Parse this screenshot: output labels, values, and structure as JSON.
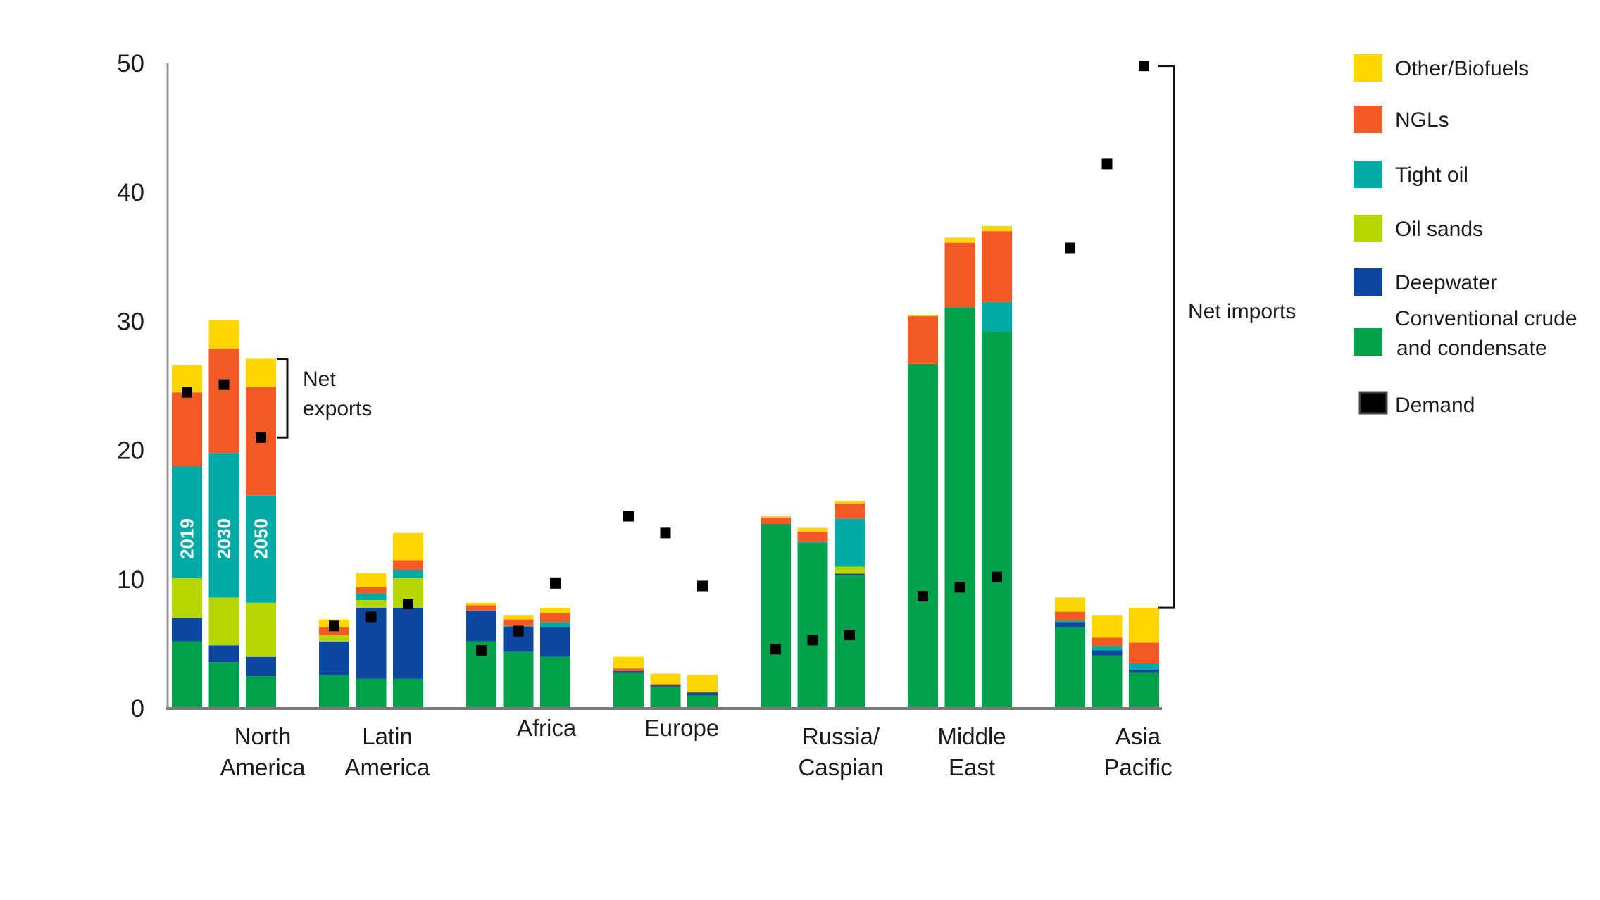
{
  "chart_data": {
    "type": "bar",
    "stacked": true,
    "title": "",
    "xlabel": "",
    "ylabel": "",
    "ylim": [
      0,
      50
    ],
    "yticks": [
      "0",
      "10",
      "20",
      "30",
      "40",
      "50"
    ],
    "grid": false,
    "legend_position": "right",
    "years": [
      "2019",
      "2030",
      "2050"
    ],
    "categories": [
      "North America",
      "Latin America",
      "Africa",
      "Europe",
      "Russia/ Caspian",
      "Middle East",
      "Asia Pacific"
    ],
    "category_labels": [
      [
        "North",
        "America"
      ],
      [
        "Latin",
        "America"
      ],
      [
        "Africa"
      ],
      [
        "Europe"
      ],
      [
        "Russia/",
        "Caspian"
      ],
      [
        "Middle",
        "East"
      ],
      [
        "Asia",
        "Pacific"
      ]
    ],
    "series": [
      {
        "name": "Conventional crude and condensate",
        "color": "#00A14B",
        "values": [
          [
            5.2,
            3.6,
            2.5
          ],
          [
            2.6,
            2.3,
            2.3
          ],
          [
            5.2,
            4.4,
            4.0
          ],
          [
            2.8,
            1.7,
            1.0
          ],
          [
            14.3,
            12.8,
            10.3
          ],
          [
            26.7,
            31.1,
            29.2
          ],
          [
            6.3,
            4.1,
            2.8
          ]
        ]
      },
      {
        "name": "Deepwater",
        "color": "#0D47A1",
        "values": [
          [
            1.8,
            1.3,
            1.5
          ],
          [
            2.6,
            5.5,
            5.5
          ],
          [
            2.4,
            1.9,
            2.3
          ],
          [
            0.1,
            0.1,
            0.25
          ],
          [
            0.0,
            0.0,
            0.15
          ],
          [
            0.0,
            0.0,
            0.0
          ],
          [
            0.4,
            0.4,
            0.2
          ]
        ]
      },
      {
        "name": "Oil sands",
        "color": "#B5D600",
        "values": [
          [
            3.1,
            3.7,
            4.2
          ],
          [
            0.5,
            0.6,
            2.3
          ],
          [
            0.0,
            0.0,
            0.0
          ],
          [
            0.0,
            0.0,
            0.0
          ],
          [
            0.0,
            0.0,
            0.55
          ],
          [
            0.0,
            0.0,
            0.0
          ],
          [
            0.0,
            0.0,
            0.0
          ]
        ]
      },
      {
        "name": "Tight oil",
        "color": "#00ABA5",
        "values": [
          [
            8.65,
            11.2,
            8.3
          ],
          [
            0.0,
            0.5,
            0.6
          ],
          [
            0.0,
            0.1,
            0.4
          ],
          [
            0.0,
            0.0,
            0.0
          ],
          [
            0.0,
            0.1,
            3.7
          ],
          [
            0.0,
            0.0,
            2.3
          ],
          [
            0.1,
            0.3,
            0.5
          ]
        ]
      },
      {
        "name": "NGLs",
        "color": "#F15A24",
        "values": [
          [
            5.75,
            8.1,
            8.4
          ],
          [
            0.6,
            0.5,
            0.8
          ],
          [
            0.4,
            0.5,
            0.7
          ],
          [
            0.2,
            0.1,
            0.0
          ],
          [
            0.5,
            0.8,
            1.2
          ],
          [
            3.7,
            5.0,
            5.5
          ],
          [
            0.7,
            0.7,
            1.6
          ]
        ]
      },
      {
        "name": "Other/Biofuels",
        "color": "#FFD500",
        "values": [
          [
            2.1,
            2.2,
            2.2
          ],
          [
            0.6,
            1.1,
            2.1
          ],
          [
            0.2,
            0.3,
            0.4
          ],
          [
            0.9,
            0.8,
            1.35
          ],
          [
            0.1,
            0.3,
            0.2
          ],
          [
            0.1,
            0.4,
            0.4
          ],
          [
            1.1,
            1.7,
            2.7
          ]
        ]
      }
    ],
    "demand": {
      "name": "Demand",
      "color": "#000000",
      "values": [
        [
          24.5,
          25.1,
          21.0
        ],
        [
          6.4,
          7.1,
          8.1
        ],
        [
          4.5,
          6.0,
          9.7
        ],
        [
          14.9,
          13.6,
          9.5
        ],
        [
          4.6,
          5.3,
          5.7
        ],
        [
          8.7,
          9.4,
          10.2
        ],
        [
          35.7,
          42.2,
          49.8
        ]
      ]
    },
    "legend": [
      {
        "label": "Other/Biofuels",
        "color": "#FFD500"
      },
      {
        "label": "NGLs",
        "color": "#F15A24"
      },
      {
        "label": "Tight oil",
        "color": "#00ABA5"
      },
      {
        "label": "Oil sands",
        "color": "#B5D600"
      },
      {
        "label": "Deepwater",
        "color": "#0D47A1"
      },
      {
        "label": [
          "Conventional crude",
          "and  condensate"
        ],
        "color": "#00A14B"
      },
      {
        "label": "Demand",
        "color": "#000000"
      }
    ],
    "annotations": {
      "net_exports": {
        "lines": [
          "Net",
          "exports"
        ],
        "range": [
          21.0,
          27.1
        ]
      },
      "net_imports": {
        "text": "Net imports",
        "range": [
          7.8,
          49.8
        ]
      }
    }
  }
}
